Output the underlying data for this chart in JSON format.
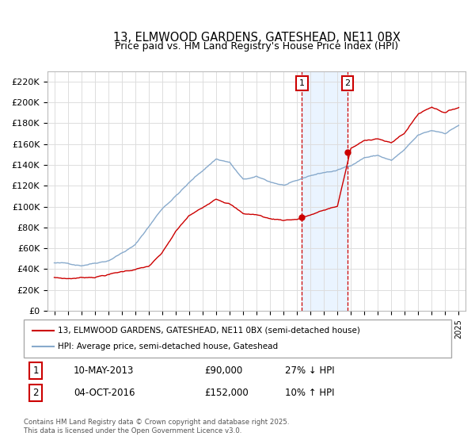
{
  "title": "13, ELMWOOD GARDENS, GATESHEAD, NE11 0BX",
  "subtitle": "Price paid vs. HM Land Registry's House Price Index (HPI)",
  "legend_line1": "13, ELMWOOD GARDENS, GATESHEAD, NE11 0BX (semi-detached house)",
  "legend_line2": "HPI: Average price, semi-detached house, Gateshead",
  "note": "Contains HM Land Registry data © Crown copyright and database right 2025.\nThis data is licensed under the Open Government Licence v3.0.",
  "transaction1": {
    "label": "1",
    "date": "10-MAY-2013",
    "price": "£90,000",
    "hpi": "27% ↓ HPI"
  },
  "transaction2": {
    "label": "2",
    "date": "04-OCT-2016",
    "price": "£152,000",
    "hpi": "10% ↑ HPI"
  },
  "sale1_date": 2013.36,
  "sale1_price": 90000,
  "sale2_date": 2016.75,
  "sale2_price": 152000,
  "ylim": [
    0,
    230000
  ],
  "yticks": [
    0,
    20000,
    40000,
    60000,
    80000,
    100000,
    120000,
    140000,
    160000,
    180000,
    200000,
    220000
  ],
  "ytick_labels": [
    "£0",
    "£20K",
    "£40K",
    "£60K",
    "£80K",
    "£100K",
    "£120K",
    "£140K",
    "£160K",
    "£180K",
    "£200K",
    "£220K"
  ],
  "color_red": "#cc0000",
  "color_blue": "#88aacc",
  "color_shading": "#ddeeff",
  "color_grid": "#dddddd"
}
